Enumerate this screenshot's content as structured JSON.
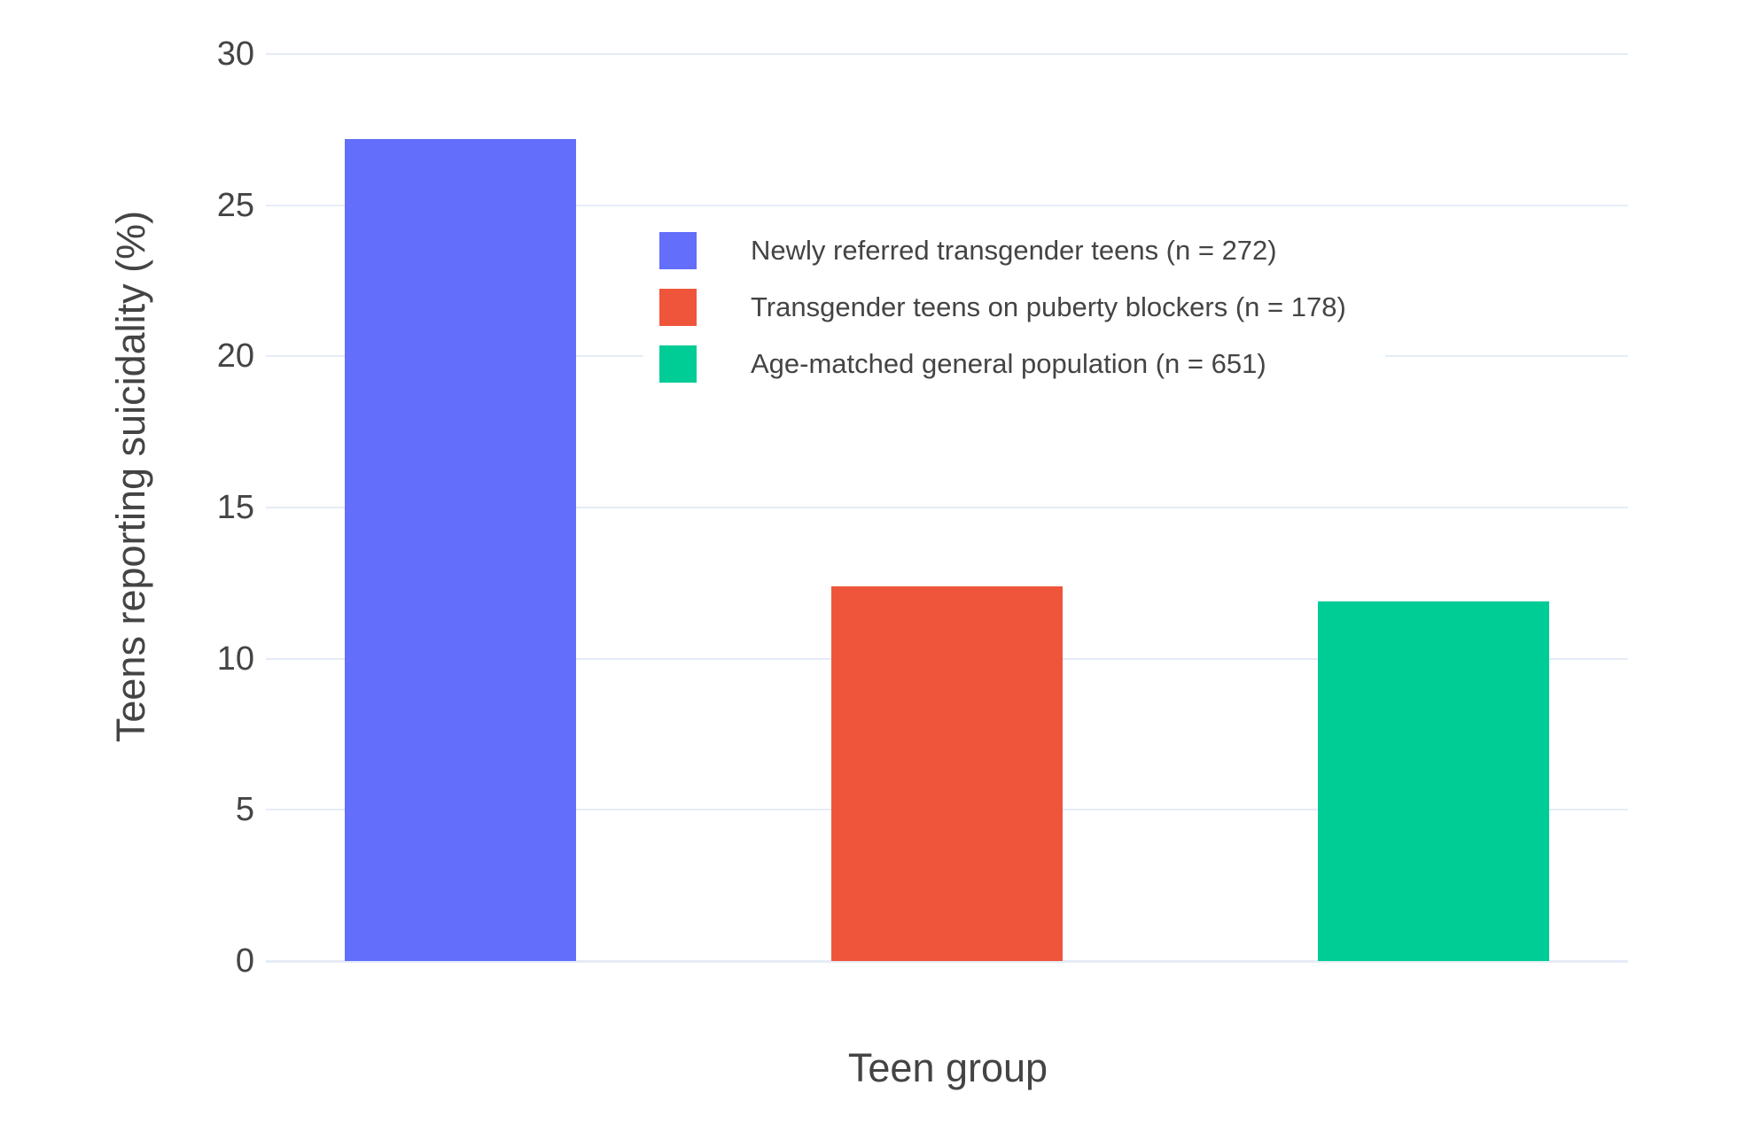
{
  "chart_data": {
    "type": "bar",
    "title": "",
    "xlabel": "Teen group",
    "ylabel": "Teens reporting suicidality (%)",
    "categories": [
      "Newly referred transgender teens (n = 272)",
      "Transgender teens on puberty blockers (n = 178)",
      "Age-matched general population (n = 651)"
    ],
    "values": [
      27.2,
      12.4,
      11.9
    ],
    "colors": [
      "#636EFA",
      "#EF553B",
      "#00CC96"
    ],
    "sample_sizes": [
      272,
      178,
      651
    ],
    "ylim": [
      0,
      30
    ],
    "yticks": [
      0,
      5,
      10,
      15,
      20,
      25,
      30
    ],
    "grid": true,
    "grid_color": "#E5ECF6",
    "text_color": "#444444",
    "background_color": "#ffffff",
    "legend_position": "inside-top-right"
  }
}
